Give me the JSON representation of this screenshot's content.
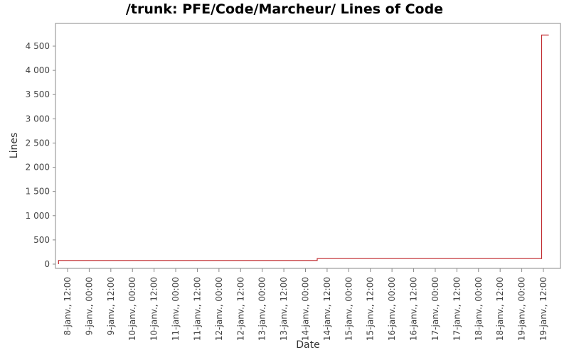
{
  "chart_data": {
    "type": "line",
    "title": "/trunk: PFE/Code/Marcheur/ Lines of Code",
    "xlabel": "Date",
    "ylabel": "Lines",
    "ylim": [
      0,
      4900
    ],
    "y_ticks": [
      0,
      500,
      1000,
      1500,
      2000,
      2500,
      3000,
      3500,
      4000,
      4500
    ],
    "y_tick_labels": [
      "0",
      "500",
      "1 000",
      "1 500",
      "2 000",
      "2 500",
      "3 000",
      "3 500",
      "4 000",
      "4 500"
    ],
    "x_range_hours": [
      -12,
      276
    ],
    "x_ticks": [
      {
        "h": 12,
        "label": "8-janv., 12:00"
      },
      {
        "h": 24,
        "label": "9-janv., 00:00"
      },
      {
        "h": 36,
        "label": "9-janv., 12:00"
      },
      {
        "h": 48,
        "label": "10-janv., 00:00"
      },
      {
        "h": 60,
        "label": "10-janv., 12:00"
      },
      {
        "h": 72,
        "label": "11-janv., 00:00"
      },
      {
        "h": 84,
        "label": "11-janv., 12:00"
      },
      {
        "h": 96,
        "label": "12-janv., 00:00"
      },
      {
        "h": 108,
        "label": "12-janv., 12:00"
      },
      {
        "h": 120,
        "label": "13-janv., 00:00"
      },
      {
        "h": 132,
        "label": "13-janv., 12:00"
      },
      {
        "h": 144,
        "label": "14-janv., 00:00"
      },
      {
        "h": 156,
        "label": "14-janv., 12:00"
      },
      {
        "h": 168,
        "label": "15-janv., 00:00"
      },
      {
        "h": 180,
        "label": "15-janv., 12:00"
      },
      {
        "h": 192,
        "label": "16-janv., 00:00"
      },
      {
        "h": 204,
        "label": "16-janv., 12:00"
      },
      {
        "h": 216,
        "label": "17-janv., 00:00"
      },
      {
        "h": 228,
        "label": "17-janv., 12:00"
      },
      {
        "h": 240,
        "label": "18-janv., 00:00"
      },
      {
        "h": 252,
        "label": "18-janv., 12:00"
      },
      {
        "h": 264,
        "label": "19-janv., 00:00"
      },
      {
        "h": 276,
        "label": "19-janv., 12:00"
      }
    ],
    "series": [
      {
        "color": "#c0282d",
        "step": true,
        "points": [
          {
            "h": 7,
            "y": 0
          },
          {
            "h": 7,
            "y": 75
          },
          {
            "h": 150.5,
            "y": 75
          },
          {
            "h": 150.5,
            "y": 115
          },
          {
            "h": 275,
            "y": 115
          },
          {
            "h": 275,
            "y": 4730
          },
          {
            "h": 279,
            "y": 4730
          }
        ]
      }
    ],
    "grid": false
  }
}
